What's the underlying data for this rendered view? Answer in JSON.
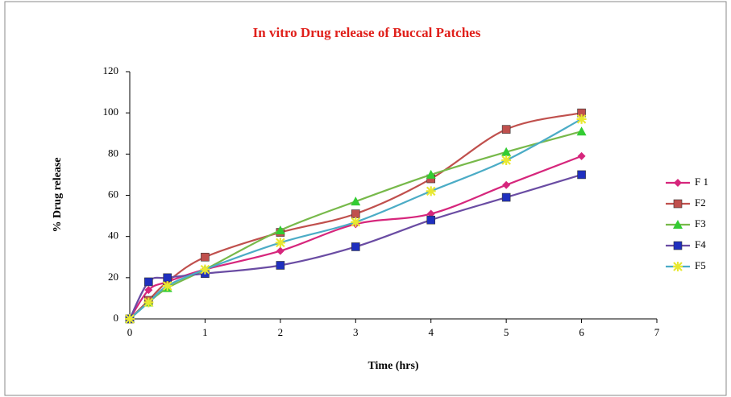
{
  "chart_data": {
    "type": "line",
    "title": "In vitro Drug release of Buccal Patches",
    "x_label": "Time (hrs)",
    "y_label": "% Drug release",
    "x": [
      0,
      0.25,
      0.5,
      1,
      2,
      3,
      4,
      5,
      6
    ],
    "series": [
      {
        "name": "F 1",
        "color": "#d6267c",
        "marker": "diamond",
        "marker_color": "#d6267c",
        "values": [
          0,
          14,
          18,
          24,
          33,
          46,
          51,
          65,
          79
        ]
      },
      {
        "name": "F2",
        "color": "#c0504d",
        "marker": "square",
        "marker_color": "#c0504d",
        "values": [
          0,
          9,
          18,
          30,
          42,
          51,
          68,
          92,
          100
        ]
      },
      {
        "name": "F3",
        "color": "#77b94a",
        "marker": "triangle",
        "marker_color": "#33cc33",
        "values": [
          0,
          8,
          15,
          24,
          43,
          57,
          70,
          81,
          91
        ]
      },
      {
        "name": "F4",
        "color": "#6a4ca3",
        "marker": "square",
        "marker_color": "#1f2fbf",
        "values": [
          0,
          18,
          20,
          22,
          26,
          35,
          48,
          59,
          70
        ]
      },
      {
        "name": "F5",
        "color": "#4bacc6",
        "marker": "star",
        "marker_color": "#e8e830",
        "values": [
          0,
          8,
          16,
          24,
          37,
          47,
          62,
          77,
          97
        ]
      }
    ],
    "xlim": [
      0,
      7
    ],
    "xticks": [
      0,
      1,
      2,
      3,
      4,
      5,
      6,
      7
    ],
    "ylim": [
      0,
      120
    ],
    "yticks": [
      0,
      20,
      40,
      60,
      80,
      100,
      120
    ],
    "grid": false,
    "legend": "right"
  }
}
